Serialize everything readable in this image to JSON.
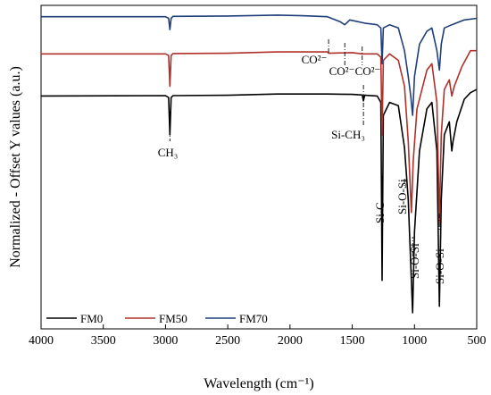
{
  "chart_data": {
    "type": "line",
    "xlabel": "Wavelength (cm⁻¹)",
    "ylabel": "Normalized - Offset Y values (a.u.)",
    "xlim": [
      4000,
      500
    ],
    "x_reversed": true,
    "x_ticks": [
      "4000",
      "3500",
      "3000",
      "2500",
      "2000",
      "1500",
      "1000",
      "500"
    ],
    "y_ticks_shown": false,
    "legend_position": "bottom-left",
    "series": [
      {
        "name": "FM0",
        "color": "#000000",
        "baseline": 0.72,
        "points": [
          [
            4000,
            0.72
          ],
          [
            3000,
            0.721
          ],
          [
            2975,
            0.715
          ],
          [
            2965,
            0.6
          ],
          [
            2955,
            0.715
          ],
          [
            2940,
            0.721
          ],
          [
            2500,
            0.722
          ],
          [
            2100,
            0.726
          ],
          [
            1700,
            0.726
          ],
          [
            1500,
            0.725
          ],
          [
            1420,
            0.723
          ],
          [
            1410,
            0.705
          ],
          [
            1400,
            0.722
          ],
          [
            1300,
            0.72
          ],
          [
            1270,
            0.7
          ],
          [
            1260,
            0.15
          ],
          [
            1250,
            0.66
          ],
          [
            1200,
            0.7
          ],
          [
            1130,
            0.69
          ],
          [
            1080,
            0.56
          ],
          [
            1050,
            0.4
          ],
          [
            1030,
            0.2
          ],
          [
            1015,
            0.05
          ],
          [
            1000,
            0.3
          ],
          [
            960,
            0.55
          ],
          [
            900,
            0.68
          ],
          [
            860,
            0.7
          ],
          [
            820,
            0.55
          ],
          [
            800,
            0.07
          ],
          [
            785,
            0.4
          ],
          [
            760,
            0.6
          ],
          [
            720,
            0.64
          ],
          [
            700,
            0.55
          ],
          [
            690,
            0.58
          ],
          [
            660,
            0.64
          ],
          [
            600,
            0.71
          ],
          [
            550,
            0.73
          ],
          [
            500,
            0.74
          ]
        ]
      },
      {
        "name": "FM50",
        "color": "#B0302A",
        "baseline": 0.85,
        "points": [
          [
            4000,
            0.85
          ],
          [
            3000,
            0.85
          ],
          [
            2975,
            0.845
          ],
          [
            2965,
            0.75
          ],
          [
            2955,
            0.845
          ],
          [
            2940,
            0.851
          ],
          [
            2500,
            0.852
          ],
          [
            2100,
            0.856
          ],
          [
            1700,
            0.856
          ],
          [
            1690,
            0.852
          ],
          [
            1500,
            0.854
          ],
          [
            1420,
            0.85
          ],
          [
            1300,
            0.85
          ],
          [
            1270,
            0.84
          ],
          [
            1260,
            0.6
          ],
          [
            1250,
            0.83
          ],
          [
            1200,
            0.85
          ],
          [
            1130,
            0.83
          ],
          [
            1080,
            0.75
          ],
          [
            1050,
            0.58
          ],
          [
            1025,
            0.36
          ],
          [
            1010,
            0.52
          ],
          [
            980,
            0.68
          ],
          [
            900,
            0.8
          ],
          [
            860,
            0.82
          ],
          [
            820,
            0.7
          ],
          [
            800,
            0.33
          ],
          [
            785,
            0.6
          ],
          [
            760,
            0.74
          ],
          [
            720,
            0.77
          ],
          [
            700,
            0.72
          ],
          [
            680,
            0.75
          ],
          [
            620,
            0.81
          ],
          [
            550,
            0.86
          ],
          [
            500,
            0.86
          ]
        ]
      },
      {
        "name": "FM70",
        "color": "#1F3E7A",
        "baseline": 0.965,
        "points": [
          [
            4000,
            0.965
          ],
          [
            3000,
            0.965
          ],
          [
            2975,
            0.96
          ],
          [
            2965,
            0.925
          ],
          [
            2955,
            0.96
          ],
          [
            2940,
            0.966
          ],
          [
            2500,
            0.967
          ],
          [
            2100,
            0.97
          ],
          [
            1900,
            0.968
          ],
          [
            1700,
            0.965
          ],
          [
            1600,
            0.95
          ],
          [
            1560,
            0.94
          ],
          [
            1520,
            0.955
          ],
          [
            1400,
            0.945
          ],
          [
            1300,
            0.94
          ],
          [
            1270,
            0.93
          ],
          [
            1260,
            0.82
          ],
          [
            1250,
            0.93
          ],
          [
            1200,
            0.94
          ],
          [
            1130,
            0.93
          ],
          [
            1080,
            0.86
          ],
          [
            1050,
            0.78
          ],
          [
            1030,
            0.72
          ],
          [
            1015,
            0.66
          ],
          [
            1000,
            0.78
          ],
          [
            960,
            0.88
          ],
          [
            900,
            0.92
          ],
          [
            860,
            0.93
          ],
          [
            820,
            0.86
          ],
          [
            800,
            0.8
          ],
          [
            785,
            0.88
          ],
          [
            760,
            0.93
          ],
          [
            700,
            0.94
          ],
          [
            600,
            0.955
          ],
          [
            500,
            0.96
          ]
        ]
      }
    ],
    "annotations": [
      {
        "text": "CH₃",
        "x": 2965,
        "rotated": false
      },
      {
        "text": "Si-CH₃",
        "x": 1410,
        "rotated": false
      },
      {
        "text": "CO²⁻",
        "x": 1690,
        "rotated": false
      },
      {
        "text": "CO²⁻",
        "x": 1560,
        "rotated": false
      },
      {
        "text": "CO²⁻",
        "x": 1420,
        "rotated": false
      },
      {
        "text": "Si-C",
        "x": 1260,
        "rotated": true
      },
      {
        "text": "Si-O-Si",
        "x": 1080,
        "rotated": true
      },
      {
        "text": "Si-O-Si",
        "x": 1015,
        "rotated": true
      },
      {
        "text": "Si-O-Si",
        "x": 800,
        "rotated": true
      }
    ]
  }
}
